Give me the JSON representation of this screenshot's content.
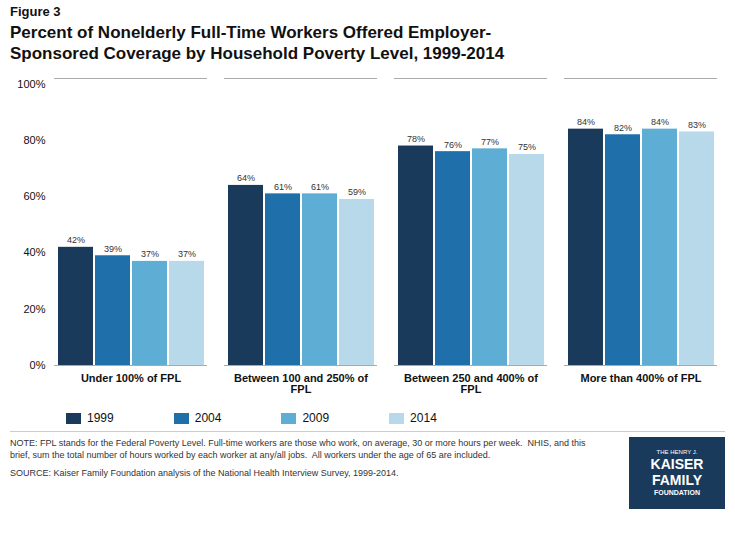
{
  "chart_data": {
    "type": "bar",
    "subtitle": "Figure 3",
    "title": "Percent of Nonelderly Full-Time Workers Offered Employer-\nSponsored Coverage by Household Poverty Level, 1999-2014",
    "annotations": [
      "NOTE: FPL stands for the Federal Poverty Level. Full-time workers are those who work, on average, 30 or more hours per week.  NHIS, and this\nbrief, sum the total number of hours worked by each worker at any/all jobs.  All workers under the age of 65 are included.",
      "SOURCE: Kaiser Family Foundation analysis of the National Health Interview Survey, 1999-2014.",
      "THE HENRY J.",
      "KAISER",
      "FAMILY",
      "FOUNDATION"
    ],
    "categories": [
      "Under 100% of FPL",
      "Between 100 and 250% of FPL",
      "Between 250 and 400% of FPL",
      "More than 400% of FPL"
    ],
    "series": [
      {
        "name": "1999",
        "color": "#1a3a5c",
        "values": [
          42,
          64,
          78,
          84
        ],
        "value_labels": [
          "42%",
          "64%",
          "78%",
          "84%"
        ]
      },
      {
        "name": "2004",
        "color": "#1f6faa",
        "values": [
          39,
          61,
          76,
          82
        ],
        "value_labels": [
          "39%",
          "61%",
          "76%",
          "82%"
        ]
      },
      {
        "name": "2009",
        "color": "#5eadd4",
        "values": [
          37,
          61,
          77,
          84
        ],
        "value_labels": [
          "37%",
          "61%",
          "77%",
          "84%"
        ]
      },
      {
        "name": "2014",
        "color": "#b8d9ea",
        "values": [
          37,
          59,
          75,
          83
        ],
        "value_labels": [
          "37%",
          "59%",
          "75%",
          "83%"
        ]
      }
    ],
    "ylim": [
      0,
      102
    ],
    "yticks": [
      {
        "value": 0,
        "label": "0%"
      },
      {
        "value": 20,
        "label": "20%"
      },
      {
        "value": 40,
        "label": "40%"
      },
      {
        "value": 60,
        "label": "60%"
      },
      {
        "value": 80,
        "label": "80%"
      },
      {
        "value": 100,
        "label": "100%"
      }
    ],
    "grid": false,
    "legend": "bottom",
    "data_labels": true
  }
}
